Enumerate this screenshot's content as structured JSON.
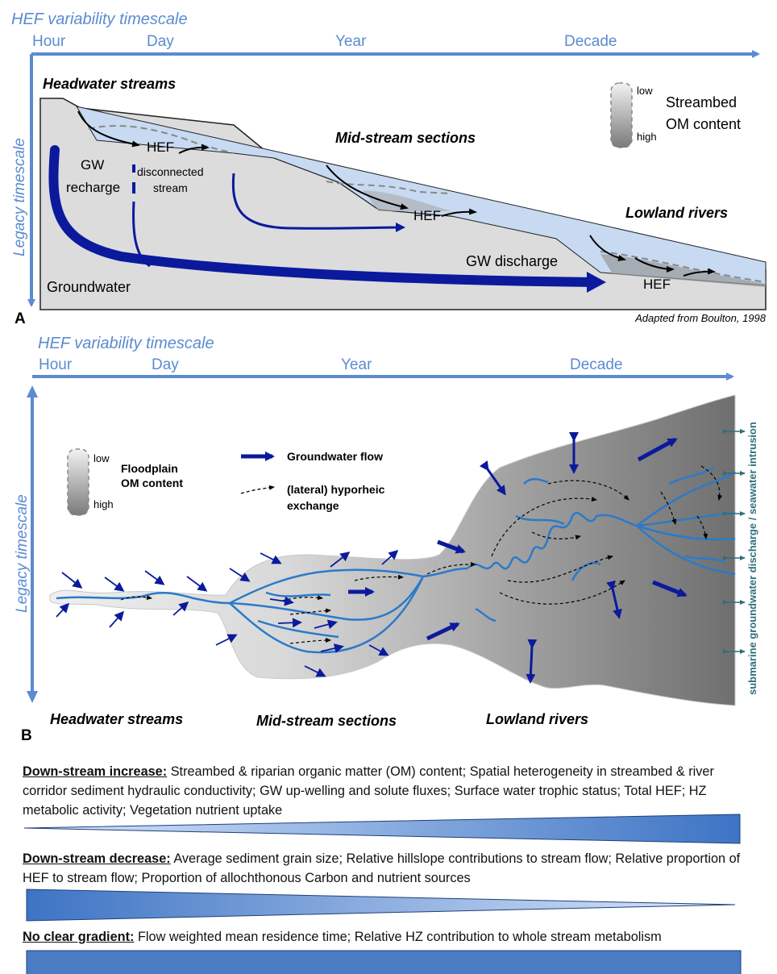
{
  "panel_a": {
    "x_axis_title": "HEF variability timescale",
    "x_ticks": [
      "Hour",
      "Day",
      "Year",
      "Decade"
    ],
    "y_axis_title": "Legacy timescale",
    "panel_letter": "A",
    "credit": "Adapted from Boulton, 1998",
    "labels": {
      "headwater": "Headwater streams",
      "midstream": "Mid-stream sections",
      "lowland": "Lowland rivers",
      "gw_recharge_1": "GW",
      "gw_recharge_2": "recharge",
      "disconnected_1": "disconnected",
      "disconnected_2": "stream",
      "hef_1": "HEF",
      "hef_2": "HEF",
      "hef_3": "HEF",
      "gw_discharge": "GW discharge",
      "groundwater": "Groundwater"
    },
    "legend": {
      "low": "low",
      "high": "high",
      "title_1": "Streambed",
      "title_2": "OM content"
    }
  },
  "panel_b": {
    "x_axis_title": "HEF variability timescale",
    "x_ticks": [
      "Hour",
      "Day",
      "Year",
      "Decade"
    ],
    "y_axis_title": "Legacy timescale",
    "panel_letter": "B",
    "legend": {
      "low": "low",
      "high": "high",
      "om_title_1": "Floodplain",
      "om_title_2": "OM content",
      "gw_flow": "Groundwater flow",
      "hyporheic_1": "(lateral) hyporheic",
      "hyporheic_2": "exchange"
    },
    "side_label": "submarine groundwater discharge / seawater intrusion",
    "bottom_labels": {
      "headwater": "Headwater streams",
      "midstream": "Mid-stream sections",
      "lowland": "Lowland rivers"
    }
  },
  "gradients": [
    {
      "heading": "Down-stream increase:",
      "text": " Streambed & riparian organic matter (OM) content; Spatial heterogeneity in streambed & river corridor sediment hydraulic conductivity; GW up-welling and solute fluxes; Surface water trophic status; Total HEF; HZ metabolic activity; Vegetation nutrient uptake",
      "shape": "increasing"
    },
    {
      "heading": "Down-stream decrease:",
      "text": " Average sediment grain size; Relative hillslope contributions to stream flow; Relative proportion of HEF to stream flow; Proportion of allochthonous Carbon and nutrient sources",
      "shape": "decreasing"
    },
    {
      "heading": "No clear gradient:",
      "text": " Flow weighted mean residence time; Relative HZ contribution to whole stream metabolism",
      "shape": "constant"
    }
  ],
  "colors": {
    "axis": "#5b8bd0",
    "gw": "#0b1a9c",
    "stream": "#2b7ac9",
    "water": "#c7daf2"
  }
}
